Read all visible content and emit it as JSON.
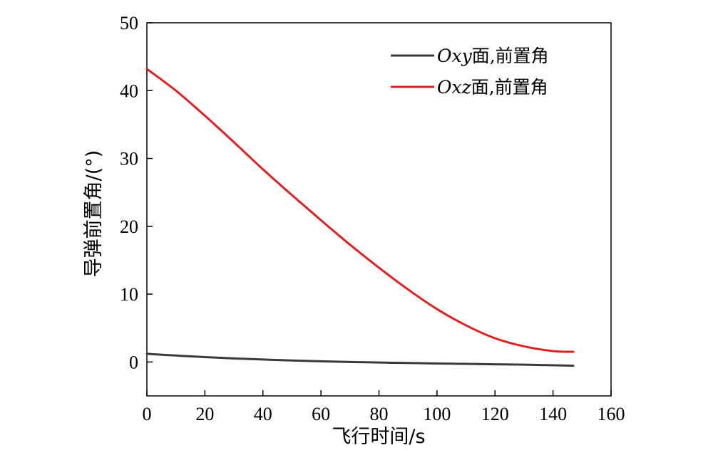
{
  "chart_data": {
    "type": "line",
    "xlabel": "飞行时间/s",
    "ylabel": "导弹前置角/(°)",
    "xlim": [
      0,
      160
    ],
    "ylim": [
      -5,
      50
    ],
    "xticks": [
      0,
      20,
      40,
      60,
      80,
      100,
      120,
      140,
      160
    ],
    "yticks": [
      0,
      10,
      20,
      30,
      40,
      50
    ],
    "grid": false,
    "legend_position": "top-right",
    "series": [
      {
        "name_prefix": "Oxy",
        "name_suffix": "面,前置角",
        "color": "#3a3a3a",
        "style": "solid",
        "x": [
          0,
          10,
          20,
          30,
          40,
          50,
          60,
          70,
          80,
          90,
          100,
          110,
          120,
          130,
          140,
          147
        ],
        "y": [
          1.2,
          0.95,
          0.72,
          0.52,
          0.36,
          0.22,
          0.1,
          0.0,
          -0.08,
          -0.15,
          -0.22,
          -0.28,
          -0.34,
          -0.4,
          -0.48,
          -0.55
        ]
      },
      {
        "name_prefix": "Oxz",
        "name_suffix": "面,前置角",
        "color": "#e02020",
        "style": "solid",
        "x": [
          0,
          10,
          20,
          30,
          40,
          50,
          60,
          70,
          80,
          90,
          100,
          110,
          120,
          130,
          140,
          147
        ],
        "y": [
          43.2,
          40.0,
          36.3,
          32.4,
          28.4,
          24.6,
          20.9,
          17.3,
          13.9,
          10.7,
          7.8,
          5.4,
          3.5,
          2.3,
          1.6,
          1.5
        ]
      }
    ]
  }
}
